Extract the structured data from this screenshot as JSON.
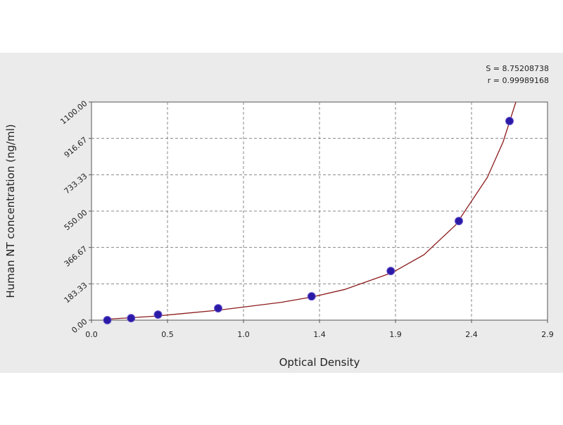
{
  "chart_data": {
    "type": "scatter",
    "annotations": [
      "S = 8.75208738",
      "r = 0.99989168"
    ],
    "xlabel": "Optical Density",
    "ylabel": "Human NT concentration (ng/ml)",
    "xlim": [
      0,
      2.88
    ],
    "ylim": [
      0,
      1100
    ],
    "xticks": [
      {
        "value": 0,
        "label": "0.0"
      },
      {
        "value": 0.48,
        "label": "0.5"
      },
      {
        "value": 0.96,
        "label": "1.0"
      },
      {
        "value": 1.44,
        "label": "1.4"
      },
      {
        "value": 1.92,
        "label": "1.9"
      },
      {
        "value": 2.4,
        "label": "2.4"
      },
      {
        "value": 2.88,
        "label": "2.9"
      }
    ],
    "yticks": [
      {
        "value": 0,
        "label": "0.00"
      },
      183.33,
      366.67,
      {
        "value": 550,
        "label": "550.00"
      },
      733.33,
      916.67,
      {
        "value": 1100,
        "label": "1100.00"
      }
    ],
    "grid": true,
    "series": [
      {
        "type": "scatter",
        "color": "#2b1aa6",
        "x": [
          0.1,
          0.25,
          0.42,
          0.8,
          1.39,
          1.89,
          2.32,
          2.64
        ],
        "values": [
          0,
          10,
          28,
          60,
          120,
          248,
          500,
          1004
        ]
      },
      {
        "type": "line",
        "color": "#8b1a1a",
        "x": [
          0.1,
          0.4,
          0.8,
          1.2,
          1.4,
          1.6,
          1.9,
          2.1,
          2.3,
          2.5,
          2.6,
          2.68
        ],
        "values": [
          5,
          20,
          50,
          90,
          118,
          155,
          240,
          330,
          480,
          720,
          900,
          1100
        ]
      }
    ]
  }
}
